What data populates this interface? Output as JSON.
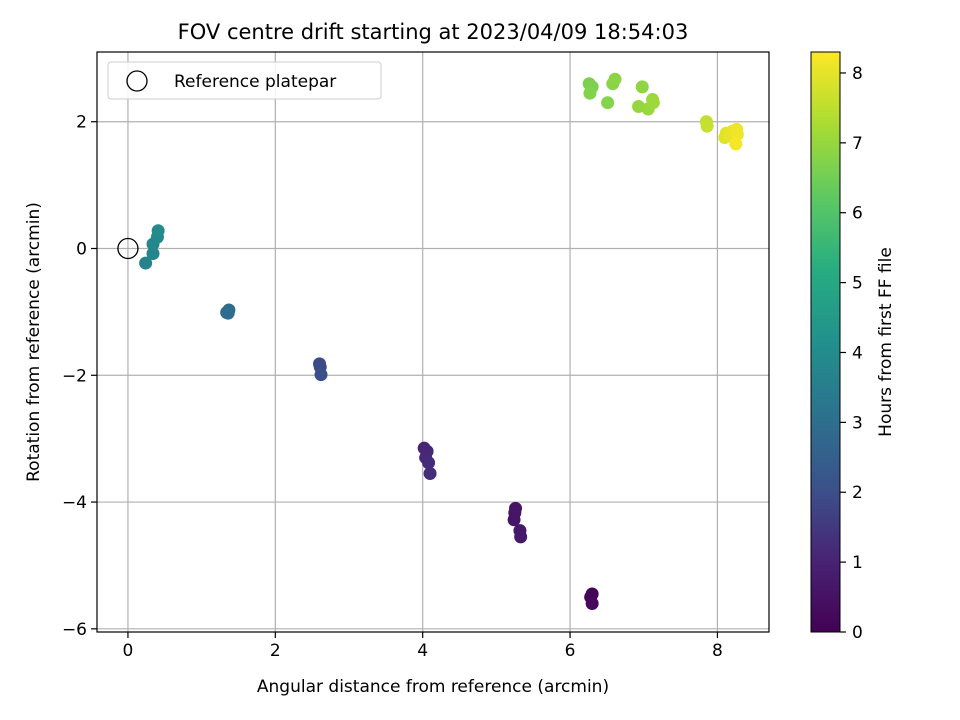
{
  "chart_data": {
    "type": "scatter",
    "title": "FOV centre drift starting at 2023/04/09 18:54:03",
    "xlabel": "Angular distance from reference (arcmin)",
    "ylabel": "Rotation from reference (arcmin)",
    "xlim": [
      -0.42,
      8.7
    ],
    "ylim": [
      -6.05,
      3.1
    ],
    "xticks": [
      0,
      2,
      4,
      6,
      8
    ],
    "yticks": [
      -6,
      -4,
      -2,
      0,
      2
    ],
    "xtick_labels": [
      "0",
      "2",
      "4",
      "6",
      "8"
    ],
    "ytick_labels": [
      "−6",
      "−4",
      "−2",
      "0",
      "2"
    ],
    "grid": true,
    "legend": {
      "position": "top-left",
      "entries": [
        "Reference platepar"
      ]
    },
    "reference_point": {
      "x": 0,
      "y": 0,
      "label": "Reference platepar"
    },
    "colorbar": {
      "label": "Hours from first FF file",
      "min": 0,
      "max": 8.3,
      "ticks": [
        0,
        1,
        2,
        3,
        4,
        5,
        6,
        7,
        8
      ],
      "tick_labels": [
        "0",
        "1",
        "2",
        "3",
        "4",
        "5",
        "6",
        "7",
        "8"
      ],
      "colormap": "viridis"
    },
    "points": [
      {
        "x": 6.3,
        "y": -5.45,
        "h": 0.1
      },
      {
        "x": 6.28,
        "y": -5.5,
        "h": 0.15
      },
      {
        "x": 6.3,
        "y": -5.6,
        "h": 0.2
      },
      {
        "x": 5.26,
        "y": -4.1,
        "h": 0.55
      },
      {
        "x": 5.24,
        "y": -4.28,
        "h": 0.6
      },
      {
        "x": 5.25,
        "y": -4.17,
        "h": 0.58
      },
      {
        "x": 5.32,
        "y": -4.45,
        "h": 0.65
      },
      {
        "x": 5.33,
        "y": -4.55,
        "h": 0.7
      },
      {
        "x": 4.02,
        "y": -3.15,
        "h": 1.05
      },
      {
        "x": 4.06,
        "y": -3.2,
        "h": 1.1
      },
      {
        "x": 4.04,
        "y": -3.3,
        "h": 1.15
      },
      {
        "x": 4.08,
        "y": -3.38,
        "h": 1.2
      },
      {
        "x": 4.1,
        "y": -3.55,
        "h": 1.25
      },
      {
        "x": 2.6,
        "y": -1.82,
        "h": 1.9
      },
      {
        "x": 2.61,
        "y": -1.87,
        "h": 1.95
      },
      {
        "x": 2.62,
        "y": -1.99,
        "h": 2.0
      },
      {
        "x": 1.34,
        "y": -1.01,
        "h": 2.85
      },
      {
        "x": 1.37,
        "y": -0.97,
        "h": 2.9
      },
      {
        "x": 1.36,
        "y": -1.02,
        "h": 2.95
      },
      {
        "x": 0.24,
        "y": -0.23,
        "h": 3.65
      },
      {
        "x": 0.34,
        "y": -0.08,
        "h": 3.75
      },
      {
        "x": 0.34,
        "y": 0.07,
        "h": 3.8
      },
      {
        "x": 0.4,
        "y": 0.18,
        "h": 3.85
      },
      {
        "x": 0.41,
        "y": 0.28,
        "h": 3.9
      },
      {
        "x": 6.26,
        "y": 2.6,
        "h": 6.6
      },
      {
        "x": 6.3,
        "y": 2.55,
        "h": 6.65
      },
      {
        "x": 6.27,
        "y": 2.45,
        "h": 6.7
      },
      {
        "x": 6.51,
        "y": 2.3,
        "h": 6.75
      },
      {
        "x": 6.58,
        "y": 2.6,
        "h": 6.8
      },
      {
        "x": 6.61,
        "y": 2.67,
        "h": 6.85
      },
      {
        "x": 6.98,
        "y": 2.55,
        "h": 6.9
      },
      {
        "x": 6.93,
        "y": 2.24,
        "h": 6.95
      },
      {
        "x": 7.06,
        "y": 2.2,
        "h": 7.0
      },
      {
        "x": 7.12,
        "y": 2.35,
        "h": 7.05
      },
      {
        "x": 7.13,
        "y": 2.3,
        "h": 7.1
      },
      {
        "x": 7.85,
        "y": 2.0,
        "h": 7.55
      },
      {
        "x": 7.86,
        "y": 1.93,
        "h": 7.6
      },
      {
        "x": 8.1,
        "y": 1.75,
        "h": 7.9
      },
      {
        "x": 8.12,
        "y": 1.82,
        "h": 7.95
      },
      {
        "x": 8.15,
        "y": 1.78,
        "h": 8.0
      },
      {
        "x": 8.2,
        "y": 1.85,
        "h": 8.05
      },
      {
        "x": 8.26,
        "y": 1.88,
        "h": 8.1
      },
      {
        "x": 8.27,
        "y": 1.8,
        "h": 8.15
      },
      {
        "x": 8.25,
        "y": 1.65,
        "h": 8.2
      }
    ]
  }
}
